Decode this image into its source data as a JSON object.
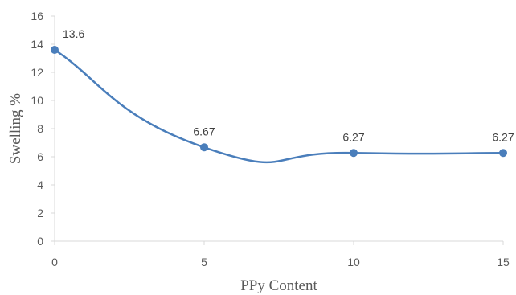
{
  "chart_data": {
    "type": "line",
    "x": [
      0,
      5,
      10,
      15
    ],
    "series": [
      {
        "values": [
          13.6,
          6.67,
          6.27,
          6.27
        ],
        "labels": [
          "13.6",
          "6.67",
          "6.27",
          "6.27"
        ]
      }
    ],
    "smooth": true,
    "xlabel": "PPy Content",
    "ylabel": "Swelling %",
    "xlim": [
      0,
      15
    ],
    "ylim": [
      0,
      16
    ],
    "xticks": [
      0,
      5,
      10,
      15
    ],
    "yticks": [
      0,
      2,
      4,
      6,
      8,
      10,
      12,
      14,
      16
    ],
    "grid": false,
    "colors": {
      "line": "#4a7ebb",
      "marker": "#4a7ebb",
      "axis": "#d9d9d9"
    }
  }
}
